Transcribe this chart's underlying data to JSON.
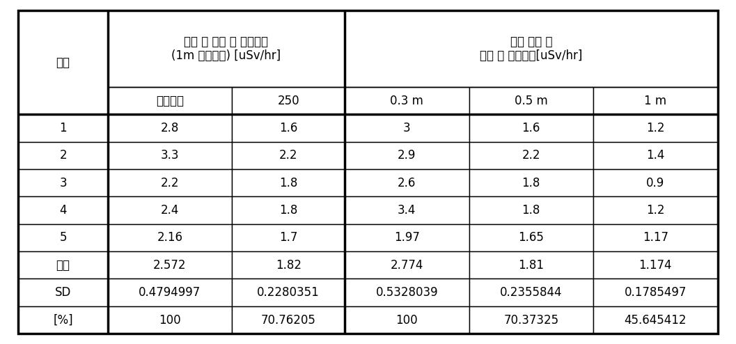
{
  "번호_label": "번호",
  "header_left_label": "주사 후 시간 별 측정선량\n(1m 거리에서) [uSv/hr]",
  "header_right_label": "최종 측정 시\n거리 별 측정선량[uSv/hr]",
  "subheader": [
    "주사직후",
    "250",
    "0.3 m",
    "0.5 m",
    "1 m"
  ],
  "data_rows": [
    [
      "1",
      "2.8",
      "1.6",
      "3",
      "1.6",
      "1.2"
    ],
    [
      "2",
      "3.3",
      "2.2",
      "2.9",
      "2.2",
      "1.4"
    ],
    [
      "3",
      "2.2",
      "1.8",
      "2.6",
      "1.8",
      "0.9"
    ],
    [
      "4",
      "2.4",
      "1.8",
      "3.4",
      "1.8",
      "1.2"
    ],
    [
      "5",
      "2.16",
      "1.7",
      "1.97",
      "1.65",
      "1.17"
    ],
    [
      "평균",
      "2.572",
      "1.82",
      "2.774",
      "1.81",
      "1.174"
    ],
    [
      "SD",
      "0.4794997",
      "0.2280351",
      "0.5328039",
      "0.2355844",
      "0.1785497"
    ],
    [
      "[%]",
      "100",
      "70.76205",
      "100",
      "70.37325",
      "45.645412"
    ]
  ],
  "col_ratios": [
    0.115,
    0.16,
    0.145,
    0.16,
    0.16,
    0.16
  ],
  "bg_color": "#ffffff",
  "border_color": "#000000",
  "text_color": "#000000",
  "font_size": 12,
  "header_font_size": 12,
  "thin_lw": 1.0,
  "thick_lw": 2.5
}
